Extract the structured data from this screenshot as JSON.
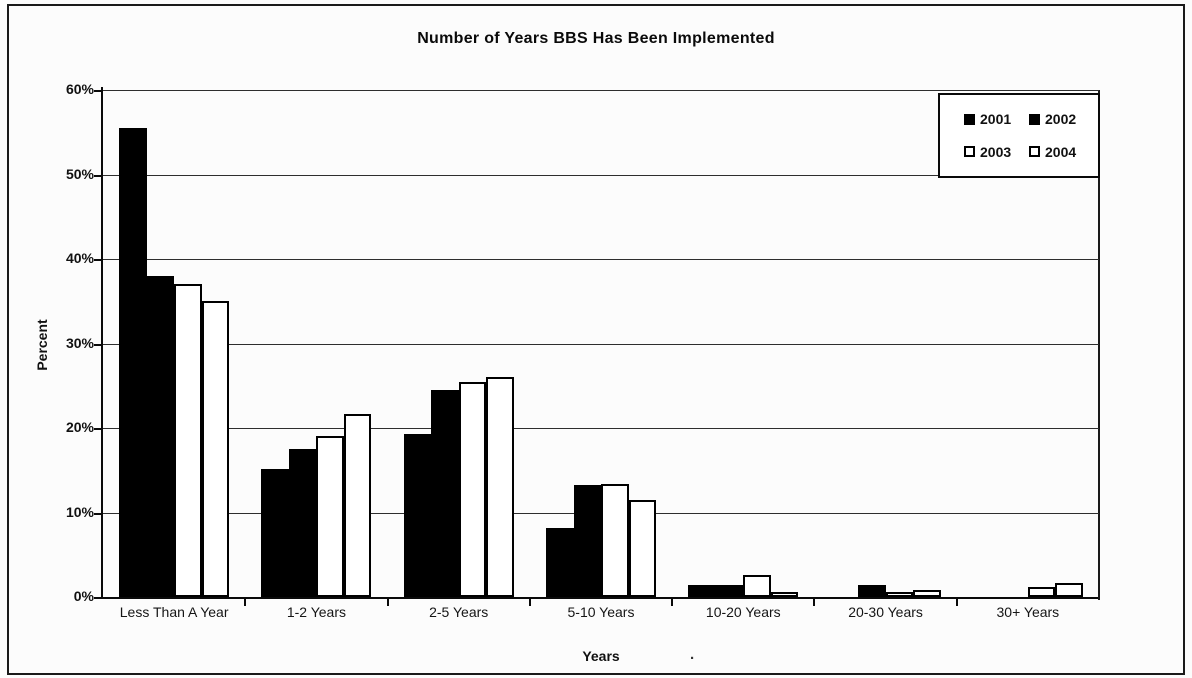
{
  "figure": {
    "stray_mark": "."
  },
  "chart_data": {
    "type": "bar",
    "title": "Number of Years BBS Has Been Implemented",
    "xlabel": "Years",
    "ylabel": "Percent",
    "ylim": [
      0,
      60
    ],
    "y_ticks": [
      0,
      10,
      20,
      30,
      40,
      50,
      60
    ],
    "y_tick_labels": [
      "0%",
      "10%",
      "20%",
      "30%",
      "40%",
      "50%",
      "60%"
    ],
    "grid": true,
    "legend_position": "top-right",
    "legend_rows": [
      [
        "2001",
        "2002"
      ],
      [
        "2003",
        "2004"
      ]
    ],
    "categories": [
      "Less Than A Year",
      "1-2 Years",
      "2-5 Years",
      "5-10 Years",
      "10-20 Years",
      "20-30 Years",
      "30+ Years"
    ],
    "series": [
      {
        "name": "2001",
        "fill": "#000000",
        "values": [
          55.5,
          15.2,
          19.3,
          8.2,
          1.4,
          0,
          0
        ]
      },
      {
        "name": "2002",
        "fill": "#000000",
        "values": [
          38.0,
          17.5,
          24.5,
          13.3,
          1.4,
          1.4,
          0
        ]
      },
      {
        "name": "2003",
        "fill": "#ffffff",
        "values": [
          37.0,
          19.0,
          25.5,
          13.4,
          2.6,
          0.6,
          1.2
        ]
      },
      {
        "name": "2004",
        "fill": "#ffffff",
        "values": [
          35.0,
          21.7,
          26.0,
          11.5,
          0.6,
          0.8,
          1.6
        ]
      }
    ],
    "bar_outline": "#000000"
  }
}
